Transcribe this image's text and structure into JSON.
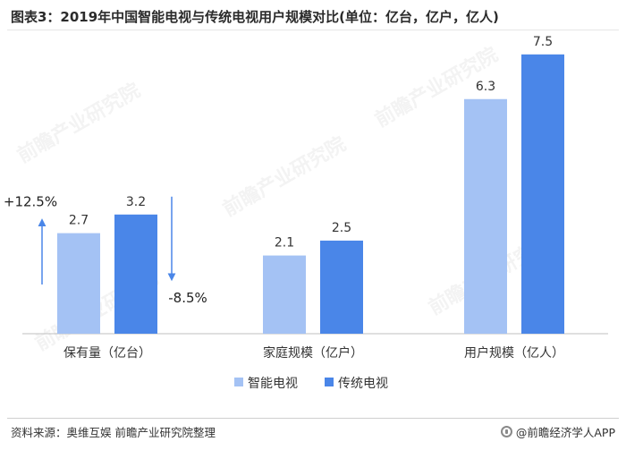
{
  "title": "图表3：2019年中国智能电视与传统电视用户规模对比(单位：亿台，亿户，亿人)",
  "colors": {
    "smart": "#a4c2f4",
    "traditional": "#4a86e8",
    "arrow": "#4a86e8",
    "axis": "#bfbfbf"
  },
  "chart_data": {
    "type": "bar",
    "title": "2019年中国智能电视与传统电视用户规模对比",
    "categories": [
      "保有量（亿台）",
      "家庭规模（亿户）",
      "用户规模（亿人）"
    ],
    "series": [
      {
        "name": "智能电视",
        "values": [
          2.7,
          2.1,
          6.3
        ]
      },
      {
        "name": "传统电视",
        "values": [
          3.2,
          2.5,
          7.5
        ]
      }
    ],
    "ylim": [
      0,
      8
    ],
    "grid": false,
    "legend": "bottom-center",
    "annotations": [
      {
        "text": "+12.5%",
        "direction": "up",
        "category": 0,
        "side": "left"
      },
      {
        "text": "-8.5%",
        "direction": "down",
        "category": 0,
        "side": "right"
      }
    ]
  },
  "footer": {
    "source": "资料来源：奥维互娱 前瞻产业研究院整理",
    "brand": "@前瞻经济学人APP"
  }
}
